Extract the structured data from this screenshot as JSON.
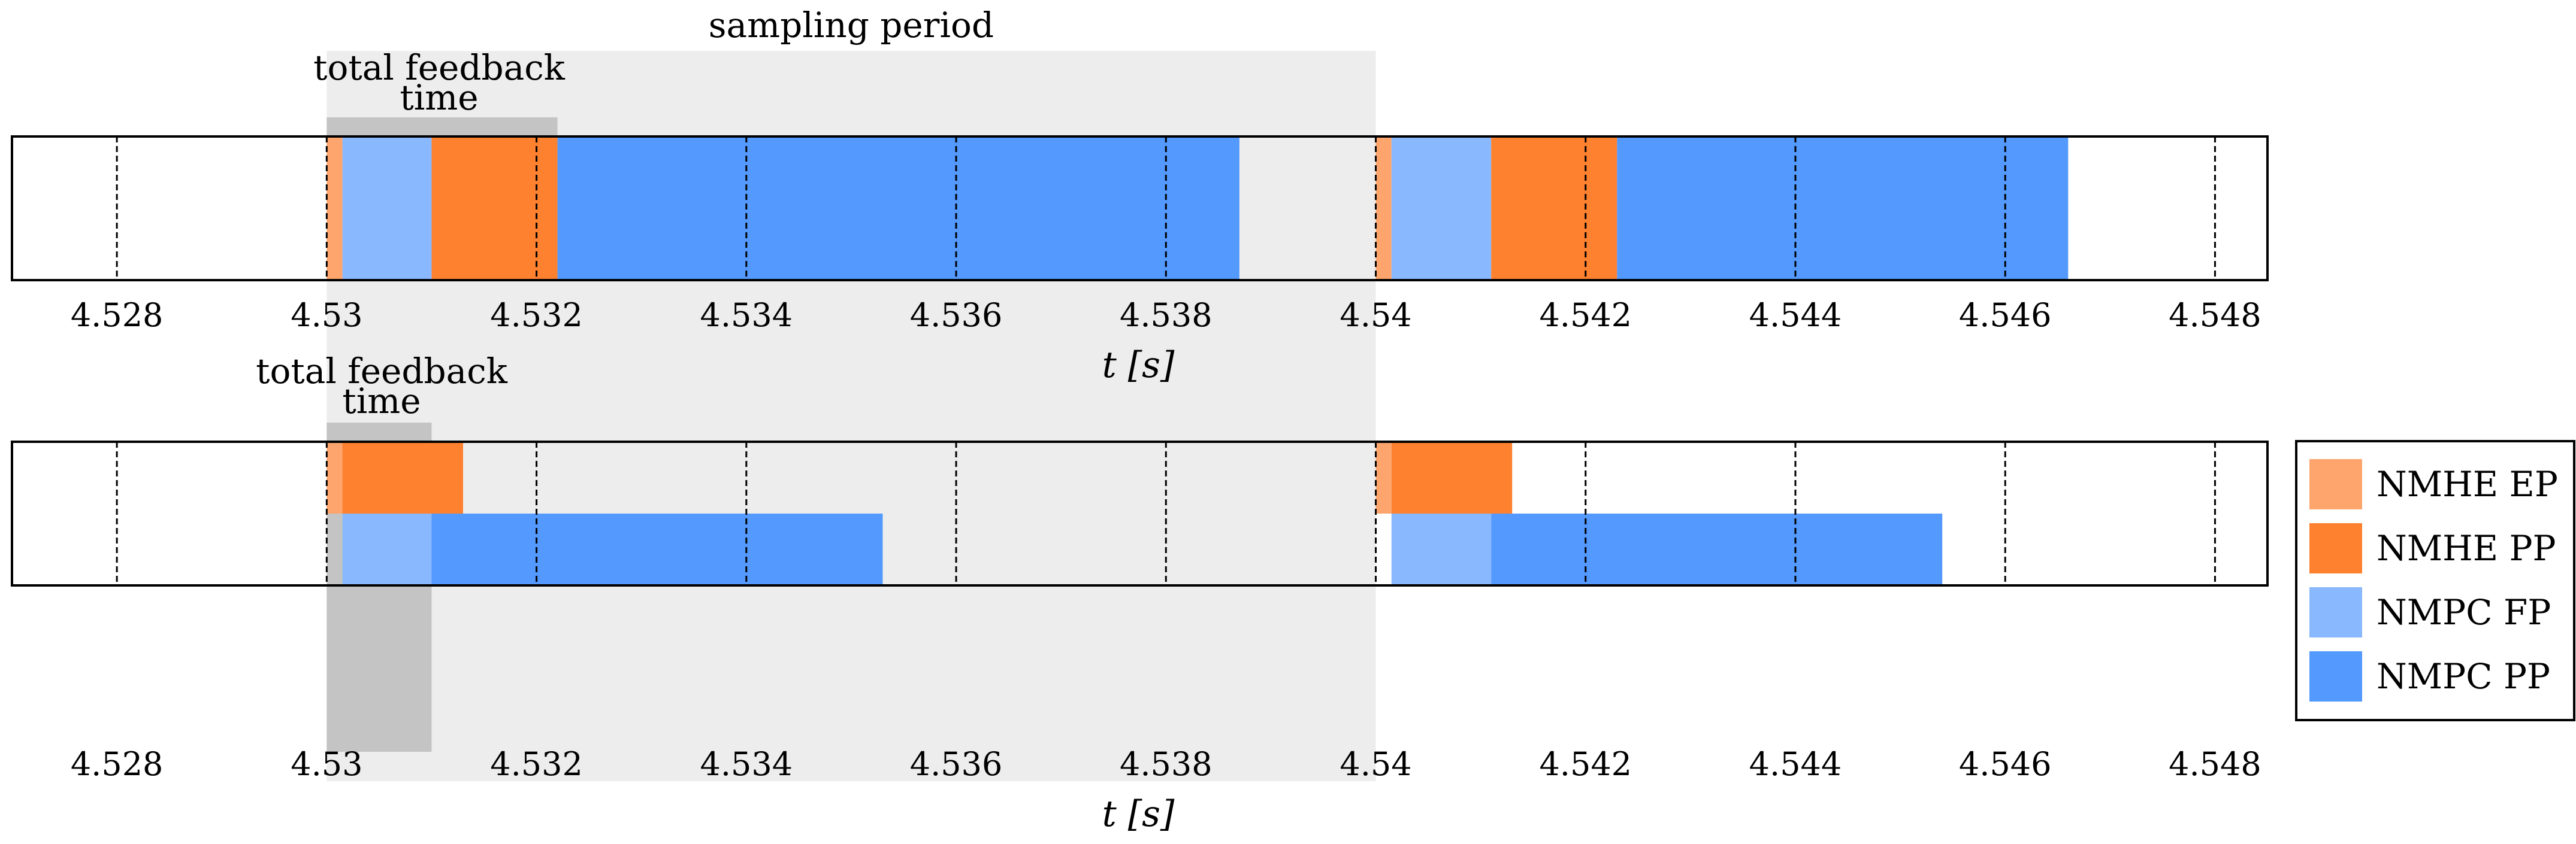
{
  "chart_data": {
    "type": "timeline",
    "colors": {
      "nmhe_ep": "#fda56c",
      "nmhe_pp": "#fd812f",
      "nmpc_fp": "#89b8fe",
      "nmpc_pp": "#5399fe",
      "sampling_shade": "#ededed",
      "feedback_shade": "#c4c4c4"
    },
    "legend": [
      {
        "key": "nmhe_ep",
        "label": "NMHE EP"
      },
      {
        "key": "nmhe_pp",
        "label": "NMHE PP"
      },
      {
        "key": "nmpc_fp",
        "label": "NMPC FP"
      },
      {
        "key": "nmpc_pp",
        "label": "NMPC PP"
      }
    ],
    "sampling_period": {
      "label": "sampling period",
      "start": 4.53,
      "end": 4.54
    },
    "panels": [
      {
        "id": "top",
        "xlim": [
          4.527,
          4.5485
        ],
        "xlabel": "t [s]",
        "xticks": [
          4.528,
          4.53,
          4.532,
          4.534,
          4.536,
          4.538,
          4.54,
          4.542,
          4.544,
          4.546,
          4.548
        ],
        "xtick_labels": [
          "4.528",
          "4.53",
          "4.532",
          "4.534",
          "4.536",
          "4.538",
          "4.54",
          "4.542",
          "4.544",
          "4.546",
          "4.548"
        ],
        "feedback": {
          "label_line1": "total feedback",
          "label_line2": "time",
          "start": 4.53,
          "end": 4.5322
        },
        "segments": [
          {
            "key": "nmhe_ep",
            "start": 4.53,
            "end": 4.53015,
            "row": "full"
          },
          {
            "key": "nmpc_fp",
            "start": 4.53015,
            "end": 4.531,
            "row": "full"
          },
          {
            "key": "nmhe_pp",
            "start": 4.531,
            "end": 4.5322,
            "row": "full"
          },
          {
            "key": "nmpc_pp",
            "start": 4.5322,
            "end": 4.5387,
            "row": "full"
          },
          {
            "key": "nmhe_ep",
            "start": 4.54,
            "end": 4.54015,
            "row": "full"
          },
          {
            "key": "nmpc_fp",
            "start": 4.54015,
            "end": 4.5411,
            "row": "full"
          },
          {
            "key": "nmhe_pp",
            "start": 4.5411,
            "end": 4.5423,
            "row": "full"
          },
          {
            "key": "nmpc_pp",
            "start": 4.5423,
            "end": 4.5466,
            "row": "full"
          }
        ]
      },
      {
        "id": "bottom",
        "xlim": [
          4.527,
          4.5485
        ],
        "xlabel": "t [s]",
        "xticks": [
          4.528,
          4.53,
          4.532,
          4.534,
          4.536,
          4.538,
          4.54,
          4.542,
          4.544,
          4.546,
          4.548
        ],
        "xtick_labels": [
          "4.528",
          "4.53",
          "4.532",
          "4.534",
          "4.536",
          "4.538",
          "4.54",
          "4.542",
          "4.544",
          "4.546",
          "4.548"
        ],
        "feedback": {
          "label_line1": "total feedback",
          "label_line2": "time",
          "start": 4.53,
          "end": 4.531
        },
        "segments": [
          {
            "key": "nmhe_ep",
            "start": 4.53,
            "end": 4.53015,
            "row": "upper"
          },
          {
            "key": "nmhe_pp",
            "start": 4.53015,
            "end": 4.5313,
            "row": "upper"
          },
          {
            "key": "nmpc_fp",
            "start": 4.53015,
            "end": 4.531,
            "row": "lower"
          },
          {
            "key": "nmpc_pp",
            "start": 4.531,
            "end": 4.5353,
            "row": "lower"
          },
          {
            "key": "nmhe_ep",
            "start": 4.54,
            "end": 4.54015,
            "row": "upper"
          },
          {
            "key": "nmhe_pp",
            "start": 4.54015,
            "end": 4.5413,
            "row": "upper"
          },
          {
            "key": "nmpc_fp",
            "start": 4.54015,
            "end": 4.5411,
            "row": "lower"
          },
          {
            "key": "nmpc_pp",
            "start": 4.5411,
            "end": 4.5454,
            "row": "lower"
          }
        ]
      }
    ]
  }
}
